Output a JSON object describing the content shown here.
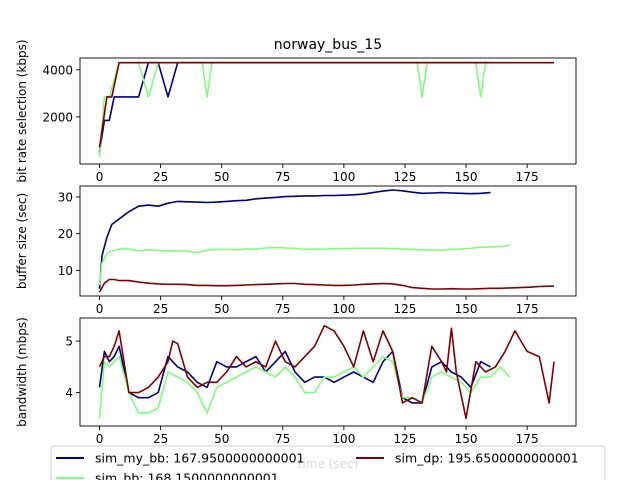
{
  "chart_data": {
    "type": "line",
    "title": "norway_bus_15",
    "xlabel": "time (sec)",
    "xlim": [
      -8,
      195
    ],
    "xticks": [
      0,
      25,
      50,
      75,
      100,
      125,
      150,
      175
    ],
    "legend": {
      "placement": "bottom",
      "entries": [
        {
          "series": "sim_my_bb",
          "label": "sim_my_bb: 167.9500000000001"
        },
        {
          "series": "sim_bb",
          "label": "sim_bb: 168.1500000000001"
        },
        {
          "series": "sim_dp",
          "label": "sim_dp: 195.6500000000001"
        }
      ]
    },
    "colors": {
      "sim_my_bb": "#00007f",
      "sim_bb": "#7dff7a",
      "sim_dp": "#7f0000"
    },
    "panels": [
      {
        "ylabel": "bit rate selection (kbps)",
        "ylim": [
          0,
          4500
        ],
        "yticks": [
          2000,
          4000
        ],
        "series": [
          {
            "name": "sim_my_bb",
            "x": [
              0,
              2,
              4,
              6,
              8,
              12,
              16,
              20,
              24,
              28,
              32,
              36,
              40,
              44,
              48,
              55,
              60,
              100,
              130,
              160
            ],
            "y": [
              500,
              1850,
              1850,
              2850,
              2850,
              2850,
              2850,
              4300,
              4300,
              2850,
              4300,
              4300,
              4300,
              4300,
              4300,
              4300,
              4300,
              4300,
              4300,
              4300
            ]
          },
          {
            "name": "sim_bb",
            "x": [
              0,
              2,
              4,
              8,
              12,
              16,
              20,
              24,
              28,
              32,
              40,
              42,
              44,
              46,
              48,
              100,
              130,
              132,
              134,
              150,
              152,
              154,
              156,
              158,
              168
            ],
            "y": [
              300,
              2850,
              2850,
              4300,
              4300,
              4300,
              2850,
              4300,
              4300,
              4300,
              4300,
              4300,
              2850,
              4300,
              4300,
              4300,
              4300,
              2850,
              4300,
              4300,
              4300,
              4300,
              2850,
              4300,
              4300
            ]
          },
          {
            "name": "sim_dp",
            "x": [
              0,
              3,
              5,
              8,
              20,
              40,
              80,
              120,
              160,
              186
            ],
            "y": [
              700,
              2850,
              2850,
              4300,
              4300,
              4300,
              4300,
              4300,
              4300,
              4300
            ]
          }
        ]
      },
      {
        "ylabel": "buffer size (sec)",
        "ylim": [
          3,
          33
        ],
        "yticks": [
          10,
          20,
          30
        ],
        "series": [
          {
            "name": "sim_my_bb",
            "x": [
              0,
              1,
              3,
              5,
              8,
              12,
              16,
              20,
              24,
              28,
              32,
              36,
              40,
              44,
              48,
              52,
              56,
              60,
              64,
              68,
              72,
              76,
              80,
              84,
              88,
              92,
              96,
              100,
              104,
              108,
              112,
              116,
              120,
              124,
              128,
              132,
              136,
              140,
              144,
              148,
              152,
              156,
              160
            ],
            "y": [
              5,
              14,
              19,
              22.5,
              24,
              26,
              27.5,
              27.8,
              27.5,
              28.3,
              28.8,
              28.7,
              28.6,
              28.5,
              28.6,
              28.8,
              29,
              29.1,
              29.5,
              29.7,
              29.9,
              30.1,
              30.2,
              30.3,
              30.3,
              30.4,
              30.4,
              30.5,
              30.6,
              30.8,
              31.2,
              31.6,
              31.9,
              31.7,
              31.3,
              31,
              31.1,
              31.2,
              31.1,
              31,
              30.9,
              31,
              31.2
            ]
          },
          {
            "name": "sim_bb",
            "x": [
              0,
              1,
              3,
              5,
              8,
              12,
              16,
              20,
              24,
              28,
              32,
              36,
              40,
              44,
              48,
              52,
              56,
              60,
              64,
              68,
              72,
              76,
              80,
              84,
              88,
              92,
              96,
              100,
              104,
              108,
              112,
              116,
              120,
              124,
              128,
              132,
              136,
              140,
              144,
              148,
              152,
              156,
              160,
              164,
              168
            ],
            "y": [
              6,
              12,
              14.5,
              15.3,
              15.8,
              15.8,
              15.3,
              15.6,
              15.4,
              15.3,
              15.3,
              15.2,
              14.8,
              15.5,
              15.7,
              15.7,
              15.6,
              15.8,
              15.8,
              16.1,
              16.2,
              16.1,
              16.0,
              15.7,
              15.8,
              15.8,
              15.9,
              15.9,
              16.0,
              16.0,
              16.0,
              16.0,
              15.9,
              15.8,
              15.7,
              15.6,
              15.5,
              15.5,
              15.7,
              15.8,
              16.0,
              16.3,
              16.4,
              16.5,
              16.8
            ]
          },
          {
            "name": "sim_dp",
            "x": [
              0,
              2,
              4,
              6,
              8,
              12,
              16,
              20,
              24,
              28,
              32,
              36,
              40,
              44,
              48,
              52,
              56,
              60,
              64,
              68,
              72,
              76,
              80,
              84,
              88,
              92,
              96,
              100,
              104,
              108,
              112,
              116,
              120,
              124,
              128,
              132,
              136,
              140,
              144,
              148,
              152,
              156,
              160,
              164,
              168,
              172,
              176,
              180,
              186
            ],
            "y": [
              4,
              6.5,
              7.5,
              7.5,
              7.2,
              7.2,
              6.8,
              6.5,
              6.3,
              6.2,
              6.2,
              6.1,
              5.9,
              5.9,
              5.8,
              5.8,
              5.9,
              6.0,
              6.1,
              6.2,
              6.3,
              6.4,
              6.4,
              6.2,
              6.1,
              6.0,
              5.9,
              5.9,
              6.0,
              6.2,
              6.3,
              6.4,
              6.3,
              5.9,
              5.3,
              5.1,
              4.9,
              4.9,
              5.0,
              4.9,
              4.9,
              5.0,
              5.1,
              5.1,
              5.2,
              5.3,
              5.4,
              5.6,
              5.7
            ]
          }
        ]
      },
      {
        "ylabel": "bandwidth (mbps)",
        "ylim": [
          3.35,
          5.45
        ],
        "yticks": [
          4,
          5
        ],
        "series": [
          {
            "name": "sim_my_bb",
            "x": [
              0,
              2,
              4,
              6,
              8,
              12,
              16,
              20,
              24,
              28,
              32,
              36,
              40,
              44,
              48,
              52,
              56,
              60,
              64,
              68,
              72,
              76,
              80,
              84,
              88,
              92,
              96,
              100,
              104,
              108,
              112,
              116,
              120,
              124,
              128,
              132,
              136,
              140,
              144,
              148,
              152,
              156,
              160
            ],
            "y": [
              4.1,
              4.8,
              4.6,
              4.7,
              4.9,
              4.0,
              3.9,
              3.9,
              4.0,
              4.7,
              4.5,
              4.4,
              4.2,
              4.1,
              4.6,
              4.5,
              4.5,
              4.6,
              4.7,
              4.4,
              4.6,
              4.8,
              4.4,
              4.2,
              4.3,
              4.3,
              4.2,
              4.3,
              4.4,
              4.3,
              4.2,
              4.6,
              4.8,
              3.9,
              3.8,
              3.8,
              4.5,
              4.6,
              4.4,
              4.3,
              4.1,
              4.6,
              4.5
            ]
          },
          {
            "name": "sim_bb",
            "x": [
              0,
              2,
              4,
              6,
              8,
              12,
              16,
              20,
              24,
              28,
              32,
              36,
              40,
              44,
              48,
              52,
              56,
              60,
              64,
              68,
              72,
              76,
              80,
              84,
              88,
              92,
              96,
              100,
              104,
              108,
              112,
              116,
              120,
              124,
              128,
              132,
              136,
              140,
              144,
              148,
              152,
              156,
              160,
              164,
              168
            ],
            "y": [
              3.5,
              4.6,
              4.5,
              4.6,
              4.7,
              4.0,
              3.6,
              3.6,
              3.7,
              4.4,
              4.3,
              4.2,
              4.0,
              3.6,
              4.1,
              4.2,
              4.3,
              4.4,
              4.5,
              4.4,
              4.3,
              4.5,
              4.3,
              4.0,
              4.0,
              4.3,
              4.3,
              4.4,
              4.5,
              4.3,
              4.5,
              4.7,
              4.6,
              3.9,
              3.9,
              3.8,
              4.3,
              4.4,
              4.3,
              4.2,
              4.0,
              4.3,
              4.3,
              4.5,
              4.3
            ]
          },
          {
            "name": "sim_dp",
            "x": [
              0,
              2,
              4,
              6,
              8,
              12,
              16,
              20,
              24,
              28,
              30,
              32,
              36,
              40,
              44,
              48,
              52,
              56,
              60,
              64,
              68,
              72,
              76,
              80,
              84,
              88,
              92,
              96,
              100,
              104,
              108,
              112,
              116,
              120,
              124,
              128,
              132,
              136,
              140,
              142,
              144,
              146,
              150,
              154,
              158,
              162,
              166,
              170,
              175,
              180,
              184,
              186
            ],
            "y": [
              4.5,
              4.7,
              4.7,
              4.9,
              5.2,
              4.0,
              4.0,
              4.1,
              4.3,
              4.6,
              5.0,
              4.95,
              4.3,
              4.1,
              4.2,
              4.2,
              4.4,
              4.7,
              4.5,
              4.6,
              4.5,
              5.0,
              4.6,
              4.5,
              4.7,
              4.9,
              5.3,
              5.2,
              4.9,
              4.5,
              5.2,
              4.6,
              5.2,
              4.8,
              3.8,
              3.9,
              3.8,
              4.9,
              4.6,
              4.4,
              5.25,
              4.4,
              3.5,
              4.6,
              4.4,
              4.5,
              4.8,
              5.2,
              4.8,
              4.7,
              3.8,
              4.6
            ]
          }
        ]
      }
    ]
  }
}
